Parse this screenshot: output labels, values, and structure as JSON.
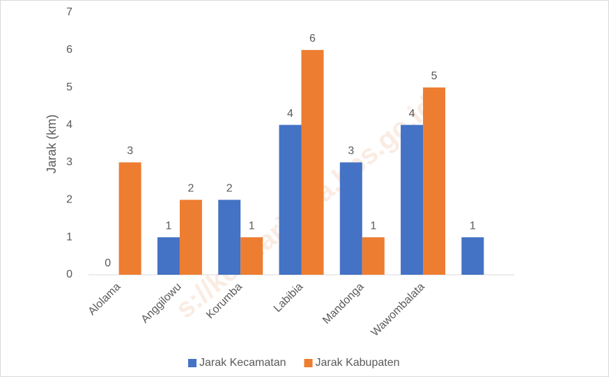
{
  "chart_data": {
    "type": "bar",
    "y_label": "Jarak (km)",
    "categories": [
      "Alolama",
      "Anggilowu",
      "Korumba",
      "Labibia",
      "Mandonga",
      "Wawombalata",
      null
    ],
    "series": [
      {
        "name": "Jarak Kecamatan",
        "color": "#4472c4",
        "values": [
          0,
          1,
          2,
          4,
          3,
          4,
          1
        ]
      },
      {
        "name": "Jarak Kabupaten",
        "color": "#ed7d31",
        "values": [
          3,
          2,
          1,
          6,
          1,
          5,
          null
        ]
      }
    ],
    "ylim": [
      0,
      7
    ],
    "yticks": [
      0,
      1,
      2,
      3,
      4,
      5,
      6,
      7
    ],
    "grid": false,
    "legend": "bottom",
    "watermark": "s://kendarikota.bps.go.id"
  }
}
